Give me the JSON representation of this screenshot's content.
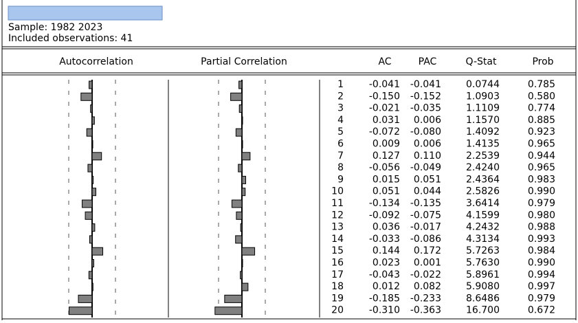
{
  "header": {
    "sample": "Sample: 1982 2023",
    "observations": "Included observations: 41"
  },
  "columns": [
    "Autocorrelation",
    "Partial Correlation",
    "AC",
    "PAC",
    "Q-Stat",
    "Prob"
  ],
  "table": {
    "rows": [
      [
        "1",
        "-0.041",
        "-0.041",
        "0.0744",
        "0.785"
      ],
      [
        "2",
        "-0.150",
        "-0.152",
        "1.0903",
        "0.580"
      ],
      [
        "3",
        "-0.021",
        "-0.035",
        "1.1109",
        "0.774"
      ],
      [
        "4",
        "0.031",
        "0.006",
        "1.1570",
        "0.885"
      ],
      [
        "5",
        "-0.072",
        "-0.080",
        "1.4092",
        "0.923"
      ],
      [
        "6",
        "0.009",
        "0.006",
        "1.4135",
        "0.965"
      ],
      [
        "7",
        "0.127",
        "0.110",
        "2.2539",
        "0.944"
      ],
      [
        "8",
        "-0.056",
        "-0.049",
        "2.4240",
        "0.965"
      ],
      [
        "9",
        "0.015",
        "0.051",
        "2.4364",
        "0.983"
      ],
      [
        "10",
        "0.051",
        "0.044",
        "2.5826",
        "0.990"
      ],
      [
        "11",
        "-0.134",
        "-0.135",
        "3.6414",
        "0.979"
      ],
      [
        "12",
        "-0.092",
        "-0.075",
        "4.1599",
        "0.980"
      ],
      [
        "13",
        "0.036",
        "-0.017",
        "4.2432",
        "0.988"
      ],
      [
        "14",
        "-0.033",
        "-0.086",
        "4.3134",
        "0.993"
      ],
      [
        "15",
        "0.144",
        "0.172",
        "5.7263",
        "0.984"
      ],
      [
        "16",
        "0.023",
        "0.001",
        "5.7630",
        "0.990"
      ],
      [
        "17",
        "-0.043",
        "-0.022",
        "5.8961",
        "0.994"
      ],
      [
        "18",
        "0.012",
        "0.082",
        "5.9080",
        "0.997"
      ],
      [
        "19",
        "-0.185",
        "-0.233",
        "8.6486",
        "0.979"
      ],
      [
        "20",
        "-0.310",
        "-0.363",
        "16.700",
        "0.672"
      ]
    ]
  }
}
